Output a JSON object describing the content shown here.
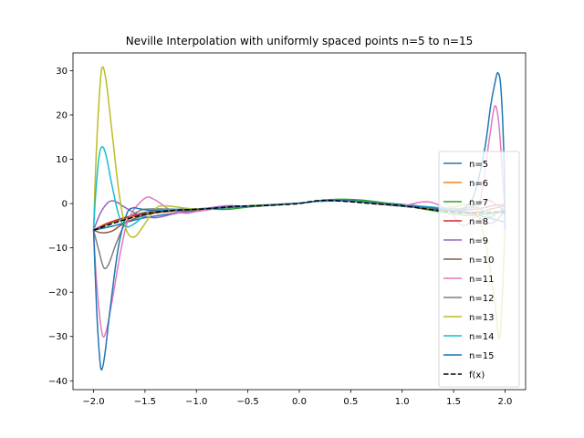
{
  "chart_data": {
    "type": "line",
    "title": "Neville Interpolation with uniformly spaced points n=5 to n=15",
    "xlabel": "",
    "ylabel": "",
    "xlim": [
      -2.2,
      2.2
    ],
    "ylim": [
      -42,
      34
    ],
    "x_ticks": [
      -2.0,
      -1.5,
      -1.0,
      -0.5,
      0.0,
      0.5,
      1.0,
      1.5,
      2.0
    ],
    "x_tick_labels": [
      "−2.0",
      "−1.5",
      "−1.0",
      "−0.5",
      "0.0",
      "0.5",
      "1.0",
      "1.5",
      "2.0"
    ],
    "y_ticks": [
      -40,
      -30,
      -20,
      -10,
      0,
      10,
      20,
      30
    ],
    "y_tick_labels": [
      "−40",
      "−30",
      "−20",
      "−10",
      "0",
      "10",
      "20",
      "30"
    ],
    "grid": false,
    "legend_position": "center-right",
    "series": [
      {
        "name": "n=5",
        "color": "#1f77b4",
        "dash": "solid",
        "points": [
          [
            -2.0,
            -6.0
          ],
          [
            -1.8,
            -5.0
          ],
          [
            -1.5,
            -3.2
          ],
          [
            -1.0,
            -1.6
          ],
          [
            -0.5,
            -0.6
          ],
          [
            0.0,
            0.1
          ],
          [
            0.2,
            0.5
          ],
          [
            0.5,
            0.6
          ],
          [
            1.0,
            -0.2
          ],
          [
            1.5,
            -1.4
          ],
          [
            1.8,
            -3.0
          ],
          [
            2.0,
            -4.2
          ]
        ]
      },
      {
        "name": "n=6",
        "color": "#ff7f0e",
        "dash": "solid",
        "points": [
          [
            -2.0,
            -6.0
          ],
          [
            -1.8,
            -4.2
          ],
          [
            -1.5,
            -2.4
          ],
          [
            -1.0,
            -1.4
          ],
          [
            -0.5,
            -0.5
          ],
          [
            0.0,
            0.1
          ],
          [
            0.25,
            0.7
          ],
          [
            0.5,
            0.6
          ],
          [
            1.0,
            -0.4
          ],
          [
            1.5,
            -1.8
          ],
          [
            1.8,
            -2.4
          ],
          [
            2.0,
            -2.0
          ]
        ]
      },
      {
        "name": "n=7",
        "color": "#2ca02c",
        "dash": "solid",
        "points": [
          [
            -2.0,
            -6.0
          ],
          [
            -1.8,
            -4.0
          ],
          [
            -1.5,
            -2.0
          ],
          [
            -1.2,
            -1.3
          ],
          [
            -1.0,
            -1.2
          ],
          [
            -0.7,
            -1.3
          ],
          [
            -0.5,
            -0.8
          ],
          [
            0.0,
            0.1
          ],
          [
            0.3,
            0.9
          ],
          [
            0.6,
            0.8
          ],
          [
            1.0,
            -0.4
          ],
          [
            1.3,
            -1.6
          ],
          [
            1.6,
            -2.6
          ],
          [
            1.8,
            -2.4
          ],
          [
            2.0,
            -1.6
          ]
        ]
      },
      {
        "name": "n=8",
        "color": "#d62728",
        "dash": "solid",
        "points": [
          [
            -2.0,
            -6.0
          ],
          [
            -1.85,
            -4.3
          ],
          [
            -1.6,
            -2.6
          ],
          [
            -1.3,
            -1.5
          ],
          [
            -1.0,
            -1.2
          ],
          [
            -0.5,
            -0.6
          ],
          [
            0.0,
            0.1
          ],
          [
            0.25,
            0.7
          ],
          [
            0.5,
            0.6
          ],
          [
            1.0,
            -0.5
          ],
          [
            1.4,
            -1.5
          ],
          [
            1.7,
            -1.3
          ],
          [
            1.9,
            -0.4
          ],
          [
            2.0,
            -0.3
          ]
        ]
      },
      {
        "name": "n=9",
        "color": "#9467bd",
        "dash": "solid",
        "points": [
          [
            -2.0,
            -6.0
          ],
          [
            -1.93,
            -2.0
          ],
          [
            -1.85,
            0.4
          ],
          [
            -1.78,
            0.4
          ],
          [
            -1.7,
            -0.8
          ],
          [
            -1.55,
            -2.6
          ],
          [
            -1.4,
            -3.2
          ],
          [
            -1.2,
            -2.2
          ],
          [
            -1.0,
            -1.4
          ],
          [
            -0.7,
            -0.5
          ],
          [
            -0.5,
            -0.6
          ],
          [
            0.0,
            0.1
          ],
          [
            0.25,
            0.7
          ],
          [
            0.5,
            0.5
          ],
          [
            1.0,
            -0.6
          ],
          [
            1.3,
            -1.2
          ],
          [
            1.5,
            -1.2
          ],
          [
            1.7,
            -2.6
          ],
          [
            1.85,
            -4.5
          ],
          [
            1.95,
            -3.0
          ],
          [
            2.0,
            -1.5
          ]
        ]
      },
      {
        "name": "n=10",
        "color": "#8c564b",
        "dash": "solid",
        "points": [
          [
            -2.0,
            -6.0
          ],
          [
            -1.92,
            -6.6
          ],
          [
            -1.82,
            -6.2
          ],
          [
            -1.7,
            -4.4
          ],
          [
            -1.5,
            -2.6
          ],
          [
            -1.3,
            -1.8
          ],
          [
            -1.0,
            -1.4
          ],
          [
            -0.5,
            -0.6
          ],
          [
            0.0,
            0.1
          ],
          [
            0.25,
            0.7
          ],
          [
            0.5,
            0.6
          ],
          [
            1.0,
            -0.5
          ],
          [
            1.4,
            -1.5
          ],
          [
            1.7,
            -2.0
          ],
          [
            1.85,
            -1.3
          ],
          [
            2.0,
            -0.5
          ]
        ]
      },
      {
        "name": "n=11",
        "color": "#e377c2",
        "dash": "solid",
        "points": [
          [
            -2.0,
            -6.0
          ],
          [
            -1.97,
            -18.0
          ],
          [
            -1.92,
            -29.0
          ],
          [
            -1.88,
            -29.0
          ],
          [
            -1.82,
            -22.0
          ],
          [
            -1.73,
            -10.0
          ],
          [
            -1.65,
            -3.0
          ],
          [
            -1.5,
            1.2
          ],
          [
            -1.4,
            0.8
          ],
          [
            -1.25,
            -1.5
          ],
          [
            -1.1,
            -2.2
          ],
          [
            -1.0,
            -1.8
          ],
          [
            -0.7,
            -0.8
          ],
          [
            -0.5,
            -0.6
          ],
          [
            0.0,
            0.1
          ],
          [
            0.25,
            0.7
          ],
          [
            0.5,
            0.5
          ],
          [
            0.8,
            -0.2
          ],
          [
            1.0,
            -0.5
          ],
          [
            1.25,
            0.4
          ],
          [
            1.45,
            -1.6
          ],
          [
            1.6,
            -5.0
          ],
          [
            1.75,
            0.0
          ],
          [
            1.85,
            15.0
          ],
          [
            1.9,
            22.0
          ],
          [
            1.94,
            18.0
          ],
          [
            1.98,
            5.0
          ],
          [
            2.0,
            -1.0
          ]
        ]
      },
      {
        "name": "n=12",
        "color": "#7f7f7f",
        "dash": "solid",
        "points": [
          [
            -2.0,
            -6.0
          ],
          [
            -1.95,
            -10.5
          ],
          [
            -1.9,
            -14.5
          ],
          [
            -1.85,
            -13.5
          ],
          [
            -1.78,
            -9.0
          ],
          [
            -1.68,
            -4.0
          ],
          [
            -1.55,
            -1.6
          ],
          [
            -1.4,
            -1.2
          ],
          [
            -1.0,
            -1.3
          ],
          [
            -0.5,
            -0.6
          ],
          [
            0.0,
            0.1
          ],
          [
            0.25,
            0.7
          ],
          [
            0.5,
            0.6
          ],
          [
            1.0,
            -0.6
          ],
          [
            1.3,
            -0.9
          ],
          [
            1.5,
            -1.2
          ],
          [
            1.7,
            -0.6
          ],
          [
            1.82,
            0.8
          ],
          [
            1.92,
            -0.3
          ],
          [
            2.0,
            -2.0
          ]
        ]
      },
      {
        "name": "n=13",
        "color": "#bcbd22",
        "dash": "solid",
        "points": [
          [
            -2.0,
            -6.0
          ],
          [
            -1.98,
            8.0
          ],
          [
            -1.95,
            22.0
          ],
          [
            -1.92,
            30.5
          ],
          [
            -1.88,
            28.0
          ],
          [
            -1.82,
            16.0
          ],
          [
            -1.75,
            2.0
          ],
          [
            -1.68,
            -6.0
          ],
          [
            -1.6,
            -7.5
          ],
          [
            -1.5,
            -4.5
          ],
          [
            -1.4,
            -1.2
          ],
          [
            -1.3,
            -0.5
          ],
          [
            -1.0,
            -1.2
          ],
          [
            -0.5,
            -0.6
          ],
          [
            0.0,
            0.1
          ],
          [
            0.25,
            0.7
          ],
          [
            0.5,
            0.6
          ],
          [
            1.0,
            -0.5
          ],
          [
            1.3,
            -1.0
          ],
          [
            1.5,
            -0.8
          ],
          [
            1.62,
            -0.2
          ],
          [
            1.72,
            -1.5
          ],
          [
            1.82,
            -10.0
          ],
          [
            1.9,
            -22.0
          ],
          [
            1.95,
            -30.0
          ],
          [
            2.0,
            -6.0
          ]
        ]
      },
      {
        "name": "n=14",
        "color": "#17becf",
        "dash": "solid",
        "points": [
          [
            -2.0,
            -6.0
          ],
          [
            -1.98,
            2.0
          ],
          [
            -1.95,
            10.0
          ],
          [
            -1.92,
            12.8
          ],
          [
            -1.88,
            11.0
          ],
          [
            -1.82,
            4.0
          ],
          [
            -1.75,
            -3.0
          ],
          [
            -1.68,
            -5.2
          ],
          [
            -1.6,
            -4.5
          ],
          [
            -1.5,
            -2.6
          ],
          [
            -1.4,
            -1.4
          ],
          [
            -1.0,
            -1.3
          ],
          [
            -0.5,
            -0.6
          ],
          [
            0.0,
            0.1
          ],
          [
            0.25,
            0.7
          ],
          [
            0.5,
            0.6
          ],
          [
            1.0,
            -0.5
          ],
          [
            1.3,
            -0.8
          ],
          [
            1.5,
            -1.4
          ],
          [
            1.65,
            -1.0
          ],
          [
            1.75,
            -1.0
          ],
          [
            1.85,
            -3.0
          ],
          [
            1.93,
            -2.0
          ],
          [
            2.0,
            -1.0
          ]
        ]
      },
      {
        "name": "n=15",
        "color": "#1f77b4",
        "dash": "solid",
        "points": [
          [
            -2.0,
            -6.0
          ],
          [
            -1.97,
            -24.0
          ],
          [
            -1.94,
            -35.0
          ],
          [
            -1.92,
            -37.5
          ],
          [
            -1.89,
            -34.0
          ],
          [
            -1.84,
            -24.0
          ],
          [
            -1.76,
            -10.0
          ],
          [
            -1.68,
            -2.5
          ],
          [
            -1.62,
            -1.0
          ],
          [
            -1.55,
            -1.2
          ],
          [
            -1.4,
            -1.6
          ],
          [
            -1.0,
            -1.3
          ],
          [
            -0.5,
            -0.6
          ],
          [
            0.0,
            0.1
          ],
          [
            0.25,
            0.7
          ],
          [
            0.5,
            0.6
          ],
          [
            1.0,
            -0.5
          ],
          [
            1.3,
            -1.0
          ],
          [
            1.5,
            -1.6
          ],
          [
            1.6,
            -1.0
          ],
          [
            1.7,
            2.0
          ],
          [
            1.8,
            12.0
          ],
          [
            1.86,
            22.0
          ],
          [
            1.9,
            27.0
          ],
          [
            1.93,
            29.5
          ],
          [
            1.96,
            26.0
          ],
          [
            1.99,
            10.0
          ],
          [
            2.0,
            -6.0
          ]
        ]
      },
      {
        "name": "f(x)",
        "color": "#000000",
        "dash": "dashed",
        "points": [
          [
            -2.0,
            -6.0
          ],
          [
            -1.9,
            -5.2
          ],
          [
            -1.8,
            -4.4
          ],
          [
            -1.6,
            -3.0
          ],
          [
            -1.4,
            -2.0
          ],
          [
            -1.2,
            -1.5
          ],
          [
            -1.0,
            -1.3
          ],
          [
            -0.8,
            -1.0
          ],
          [
            -0.6,
            -0.6
          ],
          [
            -0.4,
            -0.5
          ],
          [
            -0.2,
            -0.3
          ],
          [
            0.0,
            0.0
          ],
          [
            0.1,
            0.4
          ],
          [
            0.2,
            0.7
          ],
          [
            0.3,
            0.7
          ],
          [
            0.5,
            0.4
          ],
          [
            0.7,
            0.0
          ],
          [
            0.9,
            -0.3
          ],
          [
            1.0,
            -0.5
          ],
          [
            1.2,
            -1.1
          ],
          [
            1.4,
            -1.7
          ],
          [
            1.6,
            -2.1
          ],
          [
            1.8,
            -2.0
          ],
          [
            1.9,
            -1.9
          ],
          [
            2.0,
            -1.9
          ]
        ]
      }
    ]
  }
}
